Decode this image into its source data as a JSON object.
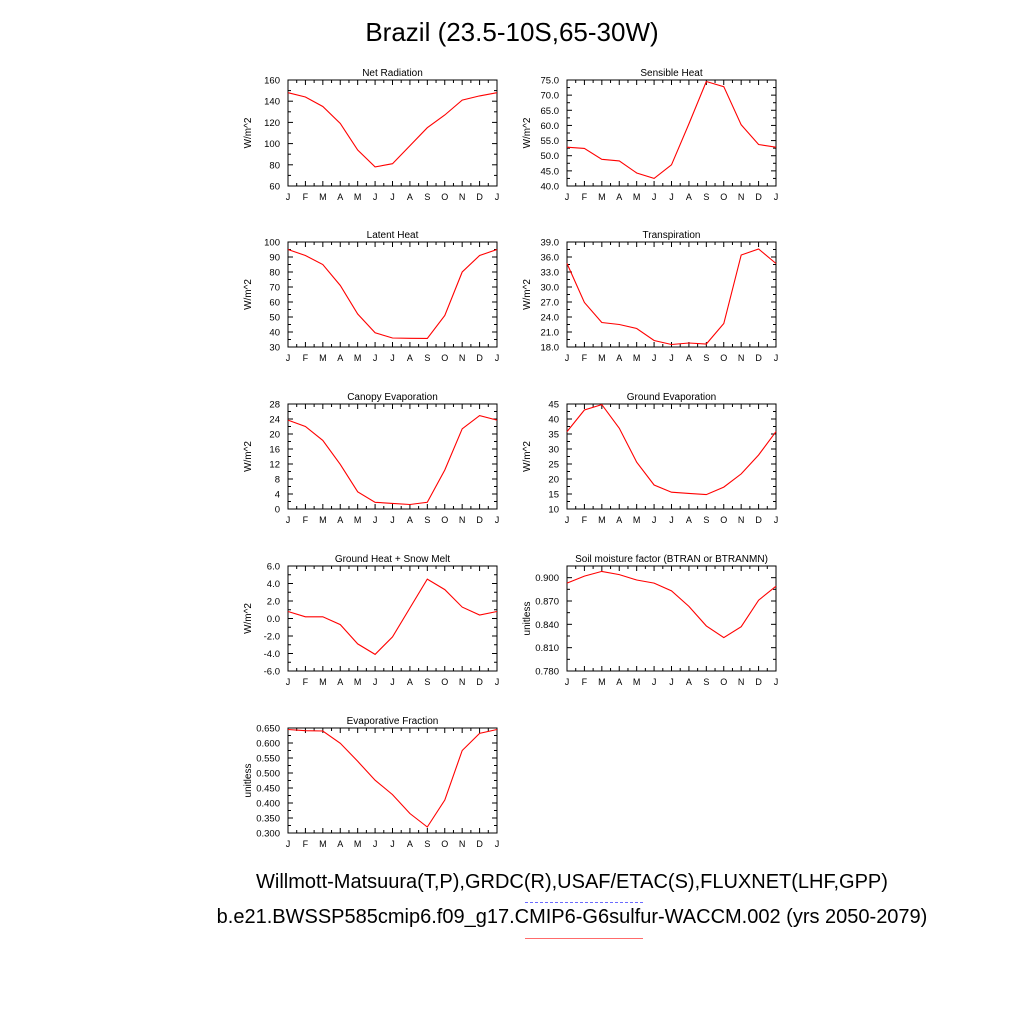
{
  "title": "Brazil (23.5-10S,65-30W)",
  "footer": {
    "obs_line": "Willmott-Matsuura(T,P),GRDC(R),USAF/ETAC(S),FLUXNET(LHF,GPP)",
    "case_line": "b.e21.BWSSP585cmip6.f09_g17.CMIP6-G6sulfur-WACCM.002 (yrs 2050-2079)"
  },
  "colors": {
    "series": "#ff0000",
    "obs_legend": "#6b6bff",
    "case_legend": "#ff6b6b"
  },
  "chart_data": [
    {
      "type": "line",
      "title": "Net Radiation",
      "xlabel": "",
      "ylabel": "W/m^2",
      "x": [
        "J",
        "F",
        "M",
        "A",
        "M",
        "J",
        "J",
        "A",
        "S",
        "O",
        "N",
        "D",
        "J"
      ],
      "ylim": [
        60,
        160
      ],
      "yticks": [
        "60",
        "80",
        "100",
        "120",
        "140",
        "160"
      ],
      "values": [
        148,
        144,
        135,
        119,
        94,
        78,
        81,
        98,
        115,
        127,
        141,
        145,
        148
      ]
    },
    {
      "type": "line",
      "title": "Sensible Heat",
      "xlabel": "",
      "ylabel": "W/m^2",
      "x": [
        "J",
        "F",
        "M",
        "A",
        "M",
        "J",
        "J",
        "A",
        "S",
        "O",
        "N",
        "D",
        "J"
      ],
      "ylim": [
        40,
        75
      ],
      "yticks": [
        "40.0",
        "45.0",
        "50.0",
        "55.0",
        "60.0",
        "65.0",
        "70.0",
        "75.0"
      ],
      "values": [
        52.8,
        52.4,
        48.8,
        48.3,
        44.3,
        42.5,
        47.0,
        60.5,
        74.5,
        72.8,
        60.2,
        53.7,
        52.8
      ]
    },
    {
      "type": "line",
      "title": "Latent Heat",
      "xlabel": "",
      "ylabel": "W/m^2",
      "x": [
        "J",
        "F",
        "M",
        "A",
        "M",
        "J",
        "J",
        "A",
        "S",
        "O",
        "N",
        "D",
        "J"
      ],
      "ylim": [
        30,
        100
      ],
      "yticks": [
        "30",
        "40",
        "50",
        "60",
        "70",
        "80",
        "90",
        "100"
      ],
      "values": [
        95,
        91,
        85,
        71,
        52,
        39.5,
        36,
        35.8,
        35.7,
        51,
        80,
        91,
        95
      ]
    },
    {
      "type": "line",
      "title": "Transpiration",
      "xlabel": "",
      "ylabel": "W/m^2",
      "x": [
        "J",
        "F",
        "M",
        "A",
        "M",
        "J",
        "J",
        "A",
        "S",
        "O",
        "N",
        "D",
        "J"
      ],
      "ylim": [
        18,
        39
      ],
      "yticks": [
        "18.0",
        "21.0",
        "24.0",
        "27.0",
        "30.0",
        "33.0",
        "36.0",
        "39.0"
      ],
      "values": [
        34.7,
        26.9,
        22.9,
        22.5,
        21.7,
        19.3,
        18.5,
        18.8,
        18.6,
        22.7,
        36.4,
        37.6,
        34.7
      ]
    },
    {
      "type": "line",
      "title": "Canopy Evaporation",
      "xlabel": "",
      "ylabel": "W/m^2",
      "x": [
        "J",
        "F",
        "M",
        "A",
        "M",
        "J",
        "J",
        "A",
        "S",
        "O",
        "N",
        "D",
        "J"
      ],
      "ylim": [
        0,
        28
      ],
      "yticks": [
        "0",
        "4",
        "8",
        "12",
        "16",
        "20",
        "24",
        "28"
      ],
      "values": [
        23.7,
        22,
        18.3,
        11.9,
        4.6,
        1.8,
        1.5,
        1.2,
        1.8,
        10.4,
        21.4,
        24.9,
        23.7
      ]
    },
    {
      "type": "line",
      "title": "Ground Evaporation",
      "xlabel": "",
      "ylabel": "W/m^2",
      "x": [
        "J",
        "F",
        "M",
        "A",
        "M",
        "J",
        "J",
        "A",
        "S",
        "O",
        "N",
        "D",
        "J"
      ],
      "ylim": [
        10,
        45
      ],
      "yticks": [
        "10",
        "15",
        "20",
        "25",
        "30",
        "35",
        "40",
        "45"
      ],
      "values": [
        35.8,
        43.0,
        44.8,
        36.9,
        25.6,
        18.0,
        15.6,
        15.2,
        14.8,
        17.3,
        21.7,
        28.0,
        35.8
      ]
    },
    {
      "type": "line",
      "title": "Ground Heat + Snow Melt",
      "xlabel": "",
      "ylabel": "W/m^2",
      "x": [
        "J",
        "F",
        "M",
        "A",
        "M",
        "J",
        "J",
        "A",
        "S",
        "O",
        "N",
        "D",
        "J"
      ],
      "ylim": [
        -6,
        6
      ],
      "yticks": [
        "-6.0",
        "-4.0",
        "-2.0",
        "0.0",
        "2.0",
        "4.0",
        "6.0"
      ],
      "values": [
        0.8,
        0.2,
        0.2,
        -0.7,
        -2.9,
        -4.1,
        -2.1,
        1.2,
        4.5,
        3.3,
        1.3,
        0.4,
        0.8
      ]
    },
    {
      "type": "line",
      "title": "Soil moisture factor (BTRAN or BTRANMN)",
      "xlabel": "",
      "ylabel": "unitless",
      "x": [
        "J",
        "F",
        "M",
        "A",
        "M",
        "J",
        "J",
        "A",
        "S",
        "O",
        "N",
        "D",
        "J"
      ],
      "ylim": [
        0.78,
        0.915
      ],
      "yticks": [
        "0.780",
        "0.810",
        "0.840",
        "0.870",
        "0.900"
      ],
      "values": [
        0.893,
        0.902,
        0.908,
        0.904,
        0.897,
        0.893,
        0.883,
        0.863,
        0.838,
        0.823,
        0.837,
        0.871,
        0.889
      ]
    },
    {
      "type": "line",
      "title": "Evaporative Fraction",
      "xlabel": "",
      "ylabel": "unitless",
      "x": [
        "J",
        "F",
        "M",
        "A",
        "M",
        "J",
        "J",
        "A",
        "S",
        "O",
        "N",
        "D",
        "J"
      ],
      "ylim": [
        0.3,
        0.65
      ],
      "yticks": [
        "0.300",
        "0.350",
        "0.400",
        "0.450",
        "0.500",
        "0.550",
        "0.600",
        "0.650"
      ],
      "values": [
        0.645,
        0.641,
        0.64,
        0.599,
        0.539,
        0.476,
        0.428,
        0.365,
        0.32,
        0.41,
        0.575,
        0.632,
        0.645
      ]
    }
  ]
}
